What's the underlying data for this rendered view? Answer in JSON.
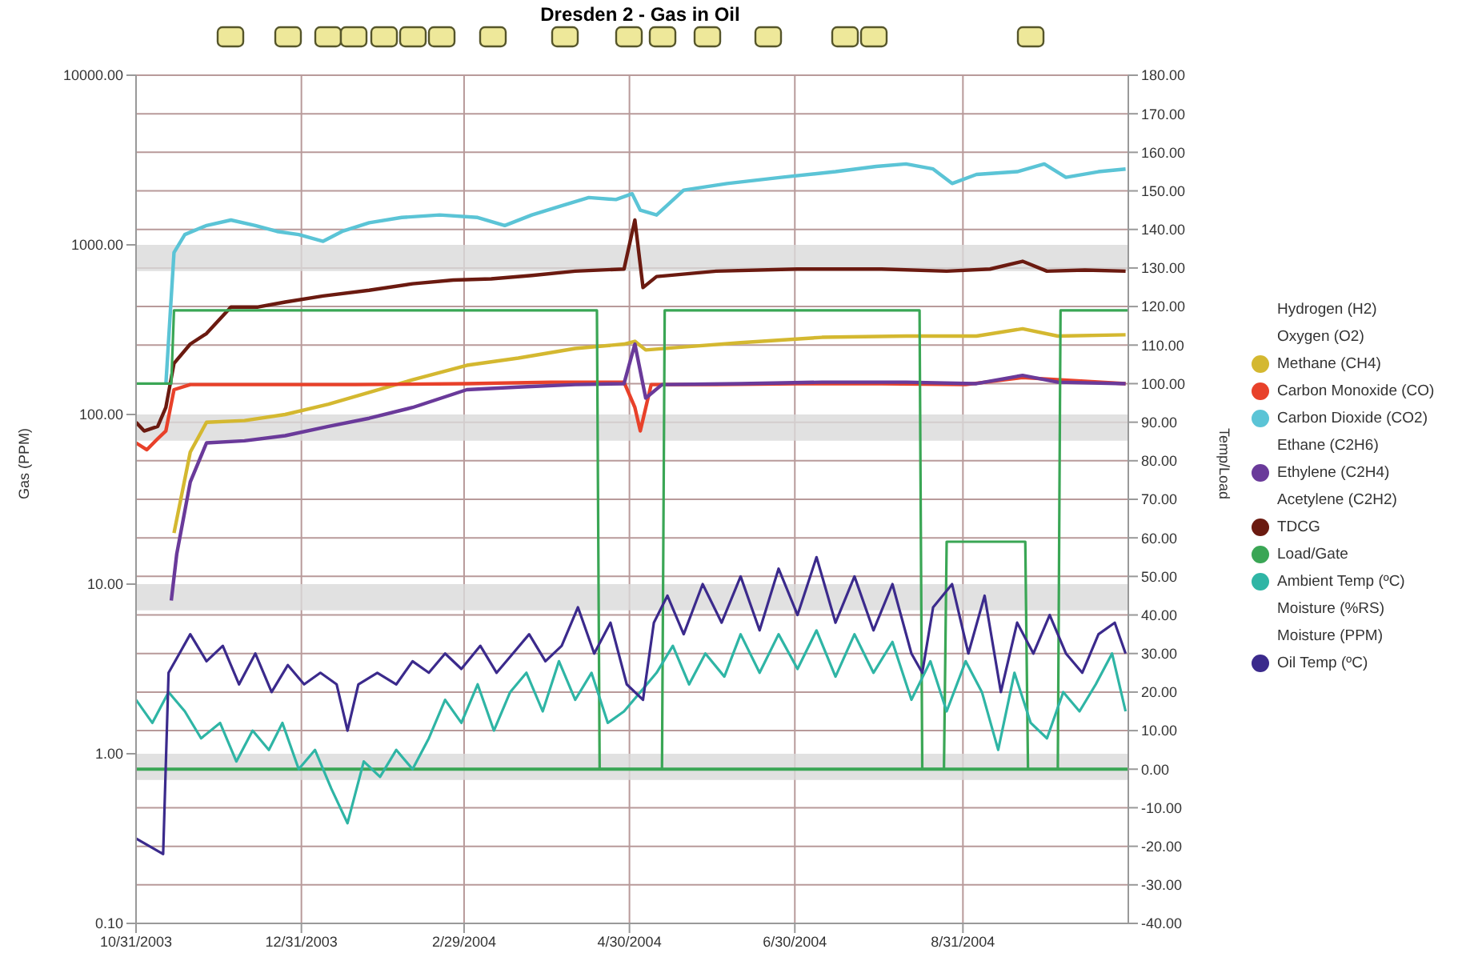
{
  "chart_data": {
    "type": "line",
    "title": "Dresden 2 - Gas in Oil",
    "ylabel": "Gas (PPM)",
    "y2label": "Temp/Load",
    "log": "y",
    "grid": true,
    "legend": "right",
    "marker": "none",
    "xlim": [
      "2003-10-31",
      "2004-10-31"
    ],
    "xticks": [
      {
        "value": "2003-10-31",
        "label": "10/31/2003"
      },
      {
        "value": "2003-12-31",
        "label": "12/31/2003"
      },
      {
        "value": "2004-02-29",
        "label": "2/29/2004"
      },
      {
        "value": "2004-04-30",
        "label": "4/30/2004"
      },
      {
        "value": "2004-06-30",
        "label": "6/30/2004"
      },
      {
        "value": "2004-08-31",
        "label": "8/31/2004"
      }
    ],
    "ylim": [
      0.1,
      10000
    ],
    "yticks": [
      {
        "value": 0.1,
        "label": "0.10"
      },
      {
        "value": 1,
        "label": "1.00"
      },
      {
        "value": 10,
        "label": "10.00"
      },
      {
        "value": 100,
        "label": "100.00"
      },
      {
        "value": 1000,
        "label": "1000.00"
      },
      {
        "value": 10000,
        "label": "10000.00"
      }
    ],
    "y2lim": [
      -40,
      180
    ],
    "y2ticks": [
      {
        "value": -40,
        "label": "-40.00"
      },
      {
        "value": -30,
        "label": "-30.00"
      },
      {
        "value": -20,
        "label": "-20.00"
      },
      {
        "value": -10,
        "label": "-10.00"
      },
      {
        "value": 0,
        "label": "0.00"
      },
      {
        "value": 10,
        "label": "10.00"
      },
      {
        "value": 20,
        "label": "20.00"
      },
      {
        "value": 30,
        "label": "30.00"
      },
      {
        "value": 40,
        "label": "40.00"
      },
      {
        "value": 50,
        "label": "50.00"
      },
      {
        "value": 60,
        "label": "60.00"
      },
      {
        "value": 70,
        "label": "70.00"
      },
      {
        "value": 80,
        "label": "80.00"
      },
      {
        "value": 90,
        "label": "90.00"
      },
      {
        "value": 100,
        "label": "100.00"
      },
      {
        "value": 110,
        "label": "110.00"
      },
      {
        "value": 120,
        "label": "120.00"
      },
      {
        "value": 130,
        "label": "130.00"
      },
      {
        "value": 140,
        "label": "140.00"
      },
      {
        "value": 150,
        "label": "150.00"
      },
      {
        "value": 160,
        "label": "160.00"
      },
      {
        "value": 170,
        "label": "170.00"
      },
      {
        "value": 180,
        "label": "180.00"
      }
    ],
    "bands": [
      {
        "axis": "y",
        "from": 0.7,
        "to": 1,
        "color": "#d9d9d9"
      },
      {
        "axis": "y",
        "from": 7,
        "to": 10,
        "color": "#d9d9d9"
      },
      {
        "axis": "y",
        "from": 70,
        "to": 100,
        "color": "#d9d9d9"
      },
      {
        "axis": "y",
        "from": 700,
        "to": 1000,
        "color": "#d9d9d9"
      }
    ],
    "ref_lines": [
      {
        "axis": "y2",
        "value": 0,
        "color": "#3aa655"
      }
    ],
    "series": [
      {
        "name": "Hydrogen (H2)",
        "color": null
      },
      {
        "name": "Oxygen (O2)",
        "color": null
      },
      {
        "name": "Methane (CH4)",
        "color": "#d4b830",
        "x": [
          "2003-11-14",
          "2003-11-20",
          "2003-11-26",
          "2003-12-10",
          "2003-12-25",
          "2004-01-10",
          "2004-01-25",
          "2004-02-10",
          "2004-03-01",
          "2004-03-20",
          "2004-04-10",
          "2004-04-28",
          "2004-05-02",
          "2004-05-06",
          "2004-05-20",
          "2004-06-10",
          "2004-07-10",
          "2004-08-10",
          "2004-09-05",
          "2004-09-22",
          "2004-10-05",
          "2004-10-30"
        ],
        "values": [
          20,
          60,
          90,
          92,
          100,
          115,
          135,
          160,
          195,
          215,
          245,
          260,
          270,
          240,
          250,
          265,
          285,
          290,
          290,
          320,
          290,
          295
        ]
      },
      {
        "name": "Carbon Monoxide (CO)",
        "color": "#e8412a",
        "x": [
          "2003-10-31",
          "2003-11-04",
          "2003-11-08",
          "2003-11-11",
          "2003-11-14",
          "2003-11-20",
          "2003-12-15",
          "2004-01-20",
          "2004-03-01",
          "2004-04-01",
          "2004-04-28",
          "2004-05-02",
          "2004-05-04",
          "2004-05-08",
          "2004-06-01",
          "2004-07-01",
          "2004-08-01",
          "2004-09-01",
          "2004-09-22",
          "2004-10-30"
        ],
        "values": [
          68,
          62,
          72,
          80,
          140,
          150,
          150,
          150,
          152,
          155,
          155,
          110,
          80,
          150,
          150,
          152,
          152,
          150,
          165,
          152
        ]
      },
      {
        "name": "Carbon Dioxide (CO2)",
        "color": "#5bc4d6",
        "x": [
          "2003-11-11",
          "2003-11-14",
          "2003-11-18",
          "2003-11-26",
          "2003-12-05",
          "2003-12-14",
          "2003-12-22",
          "2003-12-30",
          "2004-01-08",
          "2004-01-15",
          "2004-01-25",
          "2004-02-06",
          "2004-02-20",
          "2004-03-05",
          "2004-03-15",
          "2004-03-25",
          "2004-04-05",
          "2004-04-15",
          "2004-04-25",
          "2004-05-01",
          "2004-05-04",
          "2004-05-10",
          "2004-05-20",
          "2004-06-05",
          "2004-06-25",
          "2004-07-15",
          "2004-07-30",
          "2004-08-10",
          "2004-08-20",
          "2004-08-27",
          "2004-09-05",
          "2004-09-20",
          "2004-09-30",
          "2004-10-08",
          "2004-10-20",
          "2004-10-30"
        ],
        "values": [
          150,
          900,
          1150,
          1300,
          1400,
          1300,
          1200,
          1150,
          1050,
          1200,
          1350,
          1450,
          1500,
          1450,
          1300,
          1500,
          1700,
          1900,
          1850,
          2000,
          1600,
          1500,
          2100,
          2300,
          2500,
          2700,
          2900,
          3000,
          2800,
          2300,
          2600,
          2700,
          3000,
          2500,
          2700,
          2800
        ]
      },
      {
        "name": "Ethane (C2H6)",
        "color": null
      },
      {
        "name": "Ethylene (C2H4)",
        "color": "#6a3a9a",
        "x": [
          "2003-11-13",
          "2003-11-15",
          "2003-11-20",
          "2003-11-26",
          "2003-12-10",
          "2003-12-25",
          "2004-01-10",
          "2004-01-25",
          "2004-02-10",
          "2004-03-01",
          "2004-03-20",
          "2004-04-10",
          "2004-04-28",
          "2004-05-02",
          "2004-05-06",
          "2004-05-12",
          "2004-06-10",
          "2004-07-10",
          "2004-08-10",
          "2004-09-05",
          "2004-09-22",
          "2004-10-05",
          "2004-10-30"
        ],
        "values": [
          8,
          15,
          40,
          68,
          70,
          75,
          85,
          95,
          110,
          140,
          145,
          150,
          152,
          260,
          125,
          150,
          152,
          155,
          155,
          152,
          170,
          155,
          152
        ]
      },
      {
        "name": "Acetylene (C2H2)",
        "color": null
      },
      {
        "name": "TDCG",
        "color": "#6b1a10",
        "x": [
          "2003-10-31",
          "2003-11-03",
          "2003-11-08",
          "2003-11-11",
          "2003-11-14",
          "2003-11-20",
          "2003-11-26",
          "2003-12-05",
          "2003-12-15",
          "2003-12-25",
          "2004-01-08",
          "2004-01-25",
          "2004-02-10",
          "2004-02-25",
          "2004-03-10",
          "2004-03-25",
          "2004-04-10",
          "2004-04-28",
          "2004-05-02",
          "2004-05-05",
          "2004-05-10",
          "2004-06-01",
          "2004-07-01",
          "2004-08-01",
          "2004-08-25",
          "2004-09-10",
          "2004-09-22",
          "2004-10-01",
          "2004-10-15",
          "2004-10-30"
        ],
        "values": [
          90,
          80,
          85,
          110,
          200,
          260,
          300,
          430,
          430,
          460,
          500,
          540,
          590,
          620,
          630,
          660,
          700,
          720,
          1400,
          560,
          650,
          700,
          720,
          720,
          700,
          720,
          800,
          700,
          710,
          700
        ]
      },
      {
        "name": "Load/Gate",
        "color": "#3aa655",
        "axis": "y2",
        "x": [
          "2003-10-31",
          "2003-11-13",
          "2003-11-14",
          "2004-04-18",
          "2004-04-19",
          "2004-05-12",
          "2004-05-13",
          "2004-08-15",
          "2004-08-16",
          "2004-08-24",
          "2004-08-25",
          "2004-09-23",
          "2004-09-24",
          "2004-10-05",
          "2004-10-06",
          "2004-10-31"
        ],
        "values": [
          100,
          100,
          119,
          119,
          0,
          0,
          119,
          119,
          0,
          0,
          59,
          59,
          0,
          0,
          119,
          119
        ]
      },
      {
        "name": "Ambient Temp (ºC)",
        "color": "#2fb5a5",
        "axis": "y2",
        "x": [
          "2003-10-31",
          "2003-11-06",
          "2003-11-12",
          "2003-11-18",
          "2003-11-24",
          "2003-12-01",
          "2003-12-07",
          "2003-12-13",
          "2003-12-19",
          "2003-12-24",
          "2003-12-30",
          "2004-01-05",
          "2004-01-11",
          "2004-01-17",
          "2004-01-23",
          "2004-01-29",
          "2004-02-04",
          "2004-02-10",
          "2004-02-16",
          "2004-02-22",
          "2004-02-28",
          "2004-03-05",
          "2004-03-11",
          "2004-03-17",
          "2004-03-23",
          "2004-03-29",
          "2004-04-04",
          "2004-04-10",
          "2004-04-16",
          "2004-04-22",
          "2004-04-28",
          "2004-05-04",
          "2004-05-10",
          "2004-05-16",
          "2004-05-22",
          "2004-05-28",
          "2004-06-04",
          "2004-06-10",
          "2004-06-17",
          "2004-06-24",
          "2004-07-01",
          "2004-07-08",
          "2004-07-15",
          "2004-07-22",
          "2004-07-29",
          "2004-08-05",
          "2004-08-12",
          "2004-08-19",
          "2004-08-25",
          "2004-09-01",
          "2004-09-07",
          "2004-09-13",
          "2004-09-19",
          "2004-09-25",
          "2004-10-01",
          "2004-10-07",
          "2004-10-13",
          "2004-10-19",
          "2004-10-25",
          "2004-10-30"
        ],
        "values": [
          18,
          12,
          20,
          15,
          8,
          12,
          2,
          10,
          5,
          12,
          0,
          5,
          -5,
          -14,
          2,
          -2,
          5,
          0,
          8,
          18,
          12,
          22,
          10,
          20,
          25,
          15,
          28,
          18,
          25,
          12,
          15,
          20,
          25,
          32,
          22,
          30,
          24,
          35,
          25,
          35,
          26,
          36,
          24,
          35,
          25,
          33,
          18,
          28,
          15,
          28,
          20,
          5,
          25,
          12,
          8,
          20,
          15,
          22,
          30,
          15
        ]
      },
      {
        "name": "Moisture (%RS)",
        "color": null
      },
      {
        "name": "Moisture (PPM)",
        "color": null
      },
      {
        "name": "Oil Temp (ºC)",
        "color": "#3b2a8c",
        "axis": "y2",
        "x": [
          "2003-10-31",
          "2003-11-05",
          "2003-11-10",
          "2003-11-12",
          "2003-11-16",
          "2003-11-20",
          "2003-11-26",
          "2003-12-02",
          "2003-12-08",
          "2003-12-14",
          "2003-12-20",
          "2003-12-26",
          "2004-01-01",
          "2004-01-07",
          "2004-01-13",
          "2004-01-17",
          "2004-01-21",
          "2004-01-28",
          "2004-02-04",
          "2004-02-10",
          "2004-02-16",
          "2004-02-22",
          "2004-02-28",
          "2004-03-06",
          "2004-03-12",
          "2004-03-18",
          "2004-03-24",
          "2004-03-30",
          "2004-04-05",
          "2004-04-11",
          "2004-04-17",
          "2004-04-23",
          "2004-04-29",
          "2004-05-05",
          "2004-05-09",
          "2004-05-14",
          "2004-05-20",
          "2004-05-27",
          "2004-06-03",
          "2004-06-10",
          "2004-06-17",
          "2004-06-24",
          "2004-07-01",
          "2004-07-08",
          "2004-07-15",
          "2004-07-22",
          "2004-07-29",
          "2004-08-05",
          "2004-08-12",
          "2004-08-16",
          "2004-08-20",
          "2004-08-27",
          "2004-09-02",
          "2004-09-08",
          "2004-09-14",
          "2004-09-20",
          "2004-09-26",
          "2004-10-02",
          "2004-10-08",
          "2004-10-14",
          "2004-10-20",
          "2004-10-26",
          "2004-10-30"
        ],
        "values": [
          -18,
          -20,
          -22,
          25,
          30,
          35,
          28,
          32,
          22,
          30,
          20,
          27,
          22,
          25,
          22,
          10,
          22,
          25,
          22,
          28,
          25,
          30,
          26,
          32,
          25,
          30,
          35,
          28,
          32,
          42,
          30,
          38,
          22,
          18,
          38,
          45,
          35,
          48,
          38,
          50,
          36,
          52,
          40,
          55,
          38,
          50,
          36,
          48,
          30,
          25,
          42,
          48,
          30,
          45,
          20,
          38,
          30,
          40,
          30,
          25,
          35,
          38,
          30
        ]
      }
    ]
  }
}
